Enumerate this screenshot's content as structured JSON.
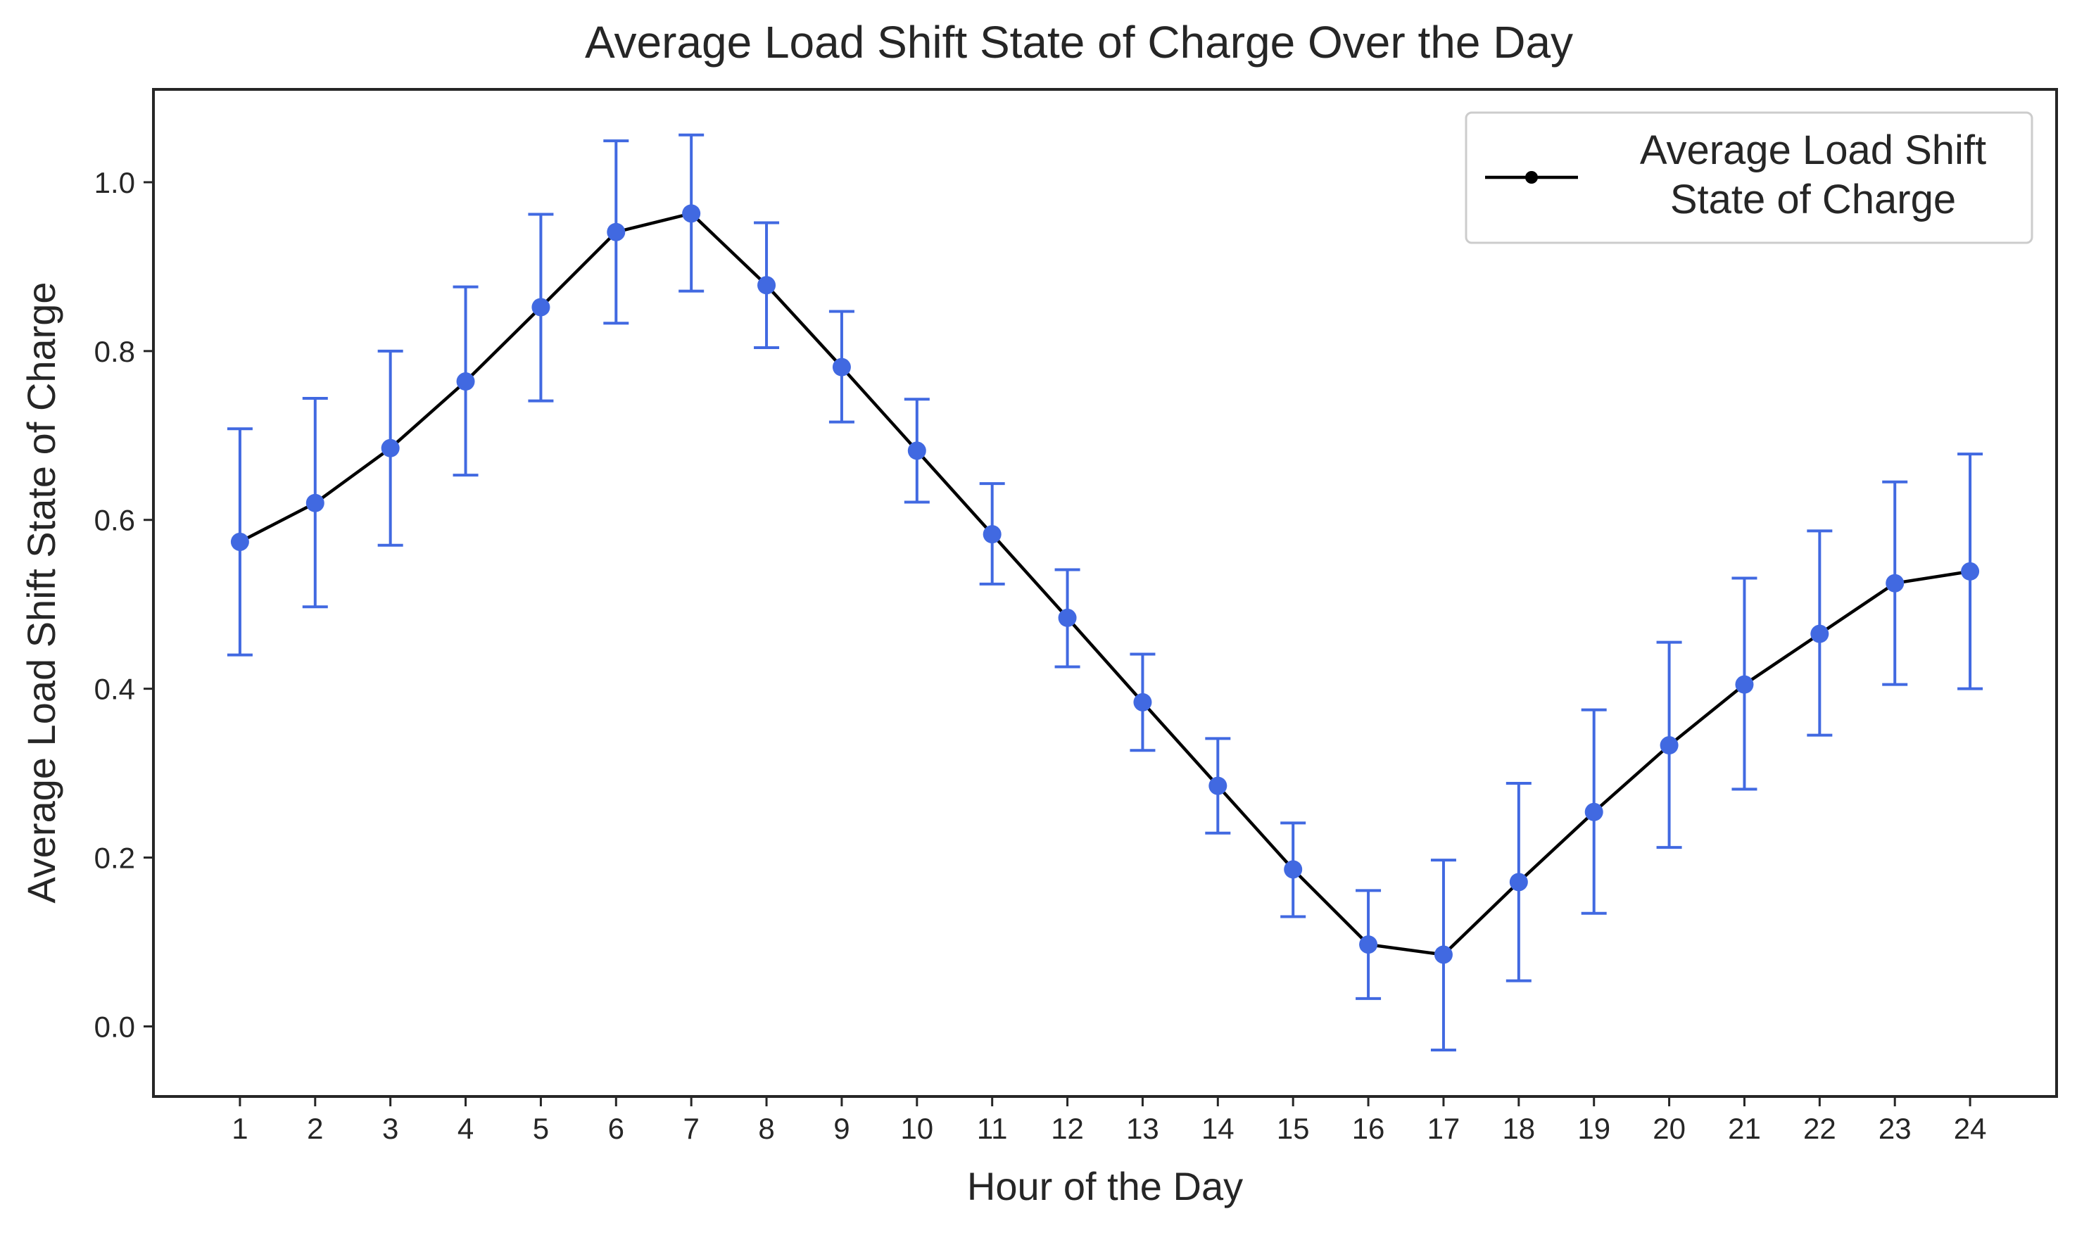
{
  "chart_data": {
    "type": "line",
    "title": "Average Load Shift State of Charge Over the Day",
    "xlabel": "Hour of the Day",
    "ylabel": "Average Load Shift State of Charge",
    "x": [
      1,
      2,
      3,
      4,
      5,
      6,
      7,
      8,
      9,
      10,
      11,
      12,
      13,
      14,
      15,
      16,
      17,
      18,
      19,
      20,
      21,
      22,
      23,
      24
    ],
    "xlim": [
      -0.15,
      25.15
    ],
    "ylim": [
      -0.083,
      1.11
    ],
    "yticks": [
      0.0,
      0.2,
      0.4,
      0.6,
      0.8,
      1.0
    ],
    "ytick_labels": [
      "0.0",
      "0.2",
      "0.4",
      "0.6",
      "0.8",
      "1.0"
    ],
    "grid": false,
    "legend": {
      "position": "upper-right",
      "labels": [
        "Average Load Shift",
        "State of Charge"
      ]
    },
    "series": [
      {
        "name": "Average Load Shift State of Charge",
        "line_color": "#000000",
        "marker_color": "#4169e1",
        "errorbar_color": "#4169e1",
        "values": [
          0.574,
          0.62,
          0.685,
          0.764,
          0.852,
          0.941,
          0.963,
          0.878,
          0.781,
          0.682,
          0.583,
          0.484,
          0.384,
          0.285,
          0.186,
          0.097,
          0.085,
          0.171,
          0.254,
          0.333,
          0.405,
          0.465,
          0.525,
          0.539
        ],
        "err_low": [
          0.44,
          0.497,
          0.57,
          0.653,
          0.741,
          0.833,
          0.871,
          0.804,
          0.716,
          0.621,
          0.524,
          0.426,
          0.327,
          0.229,
          0.13,
          0.033,
          -0.028,
          0.054,
          0.134,
          0.212,
          0.281,
          0.345,
          0.405,
          0.4
        ],
        "err_high": [
          0.708,
          0.744,
          0.8,
          0.876,
          0.962,
          1.049,
          1.056,
          0.952,
          0.847,
          0.743,
          0.643,
          0.541,
          0.441,
          0.341,
          0.241,
          0.161,
          0.197,
          0.288,
          0.375,
          0.455,
          0.531,
          0.587,
          0.645,
          0.678
        ]
      }
    ]
  }
}
